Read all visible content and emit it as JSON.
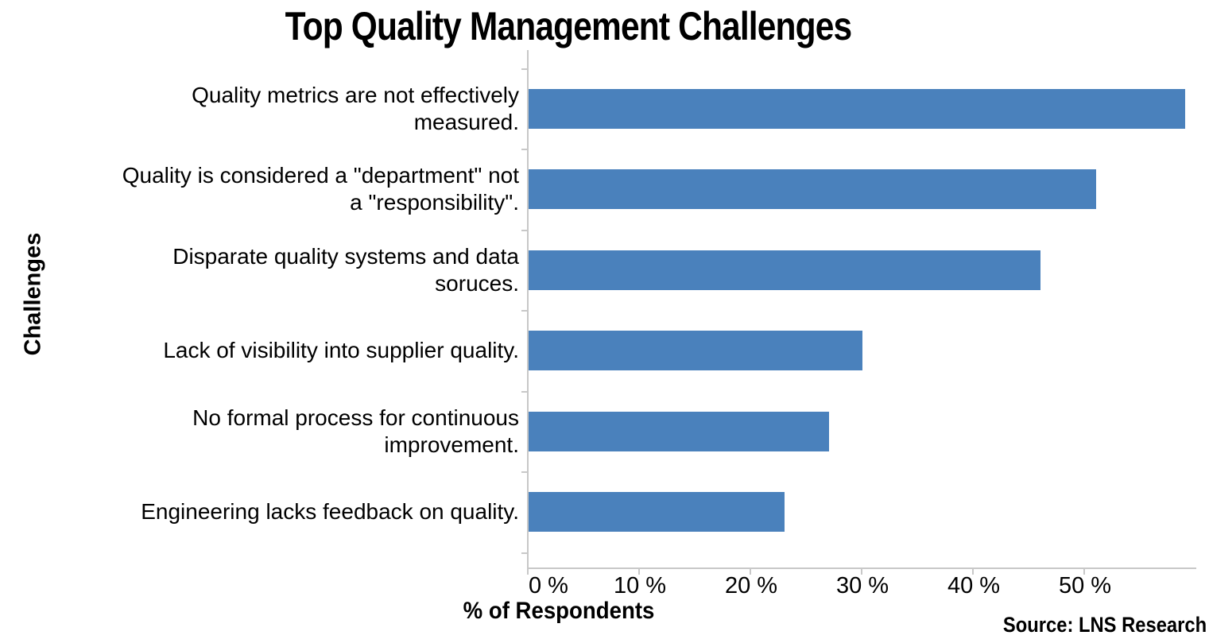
{
  "chart_data": {
    "type": "bar",
    "orientation": "horizontal",
    "title": "Top Quality Management Challenges",
    "xlabel": "% of Respondents",
    "ylabel": "Challenges",
    "source": "Source: LNS Research",
    "categories": [
      "Quality metrics are not effectively measured.",
      "Quality is considered a \"department\" not a \"responsibility\".",
      "Disparate quality systems and data soruces.",
      "Lack of visibility into supplier quality.",
      "No formal process for continuous improvement.",
      "Engineering lacks feedback on quality."
    ],
    "category_lines": [
      [
        "Quality metrics are not effectively",
        "measured."
      ],
      [
        "Quality is considered a \"department\" not",
        "a \"responsibility\"."
      ],
      [
        "Disparate quality systems and data",
        "soruces."
      ],
      [
        "Lack of visibility into supplier quality."
      ],
      [
        "No formal process for continuous",
        "improvement."
      ],
      [
        "Engineering lacks feedback on quality."
      ]
    ],
    "values": [
      59,
      51,
      46,
      30,
      27,
      23
    ],
    "unit": "%",
    "xlim": [
      0,
      60
    ],
    "xticks": [
      0,
      10,
      20,
      30,
      40,
      50
    ],
    "xtick_labels": [
      "0 %",
      "10 %",
      "20 %",
      "30 %",
      "40 %",
      "50 %"
    ],
    "bar_color": "#4A81BC",
    "axis_color": "#C8C8C8",
    "grid": false,
    "legend": false
  }
}
